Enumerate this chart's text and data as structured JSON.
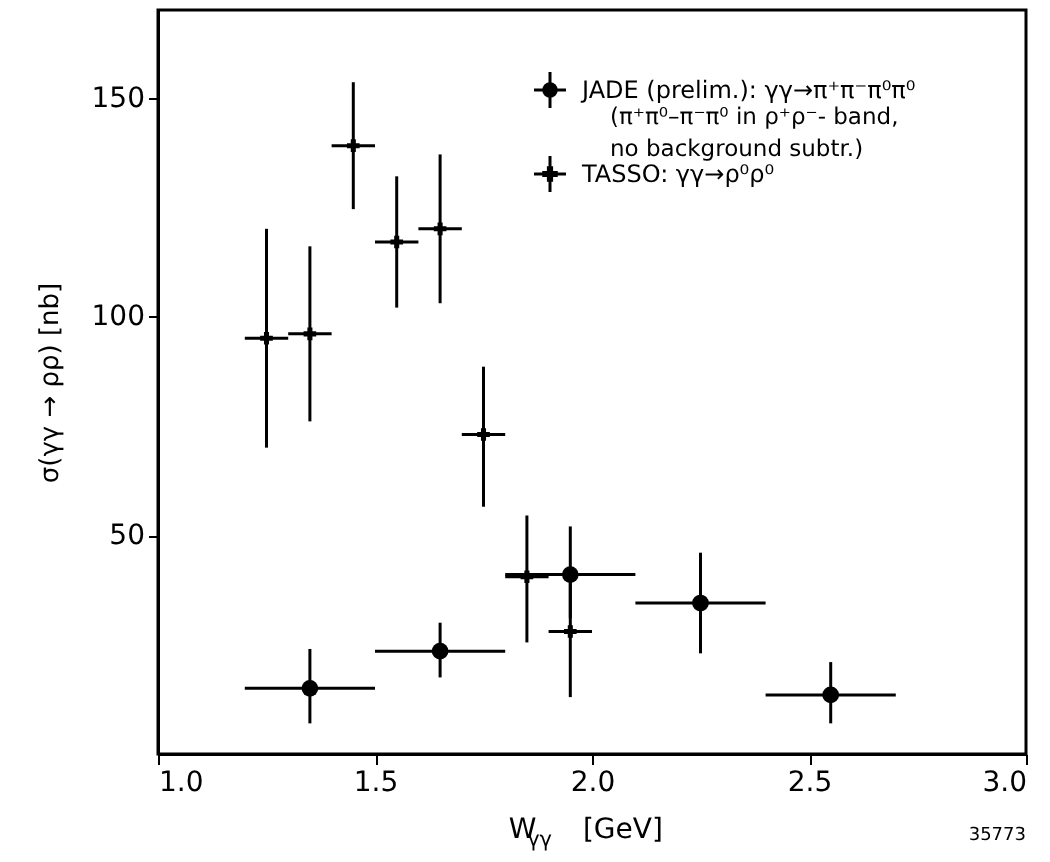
{
  "chart_data": {
    "type": "scatter",
    "xlabel": "W$_{γγ}$  [GeV]",
    "ylabel": "σ(γγ → ρρ)  [nb]",
    "xlim": [
      1.0,
      3.0
    ],
    "xticks": [
      {
        "value": 1.0,
        "label": "1.0"
      },
      {
        "value": 1.5,
        "label": "1.5"
      },
      {
        "value": 2.0,
        "label": "2.0"
      },
      {
        "value": 2.5,
        "label": "2.5"
      },
      {
        "value": 3.0,
        "label": "3.0"
      }
    ],
    "ylim": [
      0,
      170
    ],
    "yticks": [
      50,
      100,
      150
    ],
    "grid": false,
    "legend": "top right",
    "series": [
      {
        "name": "JADE (prelim.): γγ→π⁺π⁻π⁰π⁰",
        "color": "#000000",
        "marker": "circle",
        "x": [
          1.35,
          1.65,
          1.95,
          2.25,
          2.55
        ],
        "values": [
          15,
          23.5,
          41,
          34.5,
          13.5
        ],
        "errors": [
          [
            7,
            24
          ],
          [
            17.5,
            30
          ],
          [
            31,
            52
          ],
          [
            23,
            46
          ],
          [
            7,
            21
          ]
        ],
        "xerrors": [
          [
            1.2,
            1.5
          ],
          [
            1.5,
            1.8
          ],
          [
            1.8,
            2.1
          ],
          [
            2.1,
            2.4
          ],
          [
            2.4,
            2.7
          ]
        ]
      },
      {
        "name": "TASSO: γγ→ρ⁰ρ⁰",
        "color": "#000000",
        "marker": "cross",
        "x": [
          1.25,
          1.35,
          1.45,
          1.55,
          1.65,
          1.75,
          1.85,
          1.95
        ],
        "values": [
          95,
          96,
          139,
          117,
          120,
          73,
          40.5,
          28
        ],
        "errors": [
          [
            70,
            120
          ],
          [
            76,
            116
          ],
          [
            124.5,
            153.5
          ],
          [
            102,
            132
          ],
          [
            103,
            137
          ],
          [
            56.5,
            88.5
          ],
          [
            25.5,
            54.5
          ],
          [
            13,
            41
          ]
        ],
        "xerrors": [
          [
            1.2,
            1.3
          ],
          [
            1.3,
            1.4
          ],
          [
            1.4,
            1.5
          ],
          [
            1.5,
            1.6
          ],
          [
            1.6,
            1.7
          ],
          [
            1.7,
            1.8
          ],
          [
            1.8,
            1.9
          ],
          [
            1.9,
            2.0
          ]
        ]
      }
    ],
    "annotations": [
      "(π⁺π⁰–π⁻π⁰ in ρ⁺ρ⁻- band, no background subtr.)",
      "35773"
    ]
  }
}
